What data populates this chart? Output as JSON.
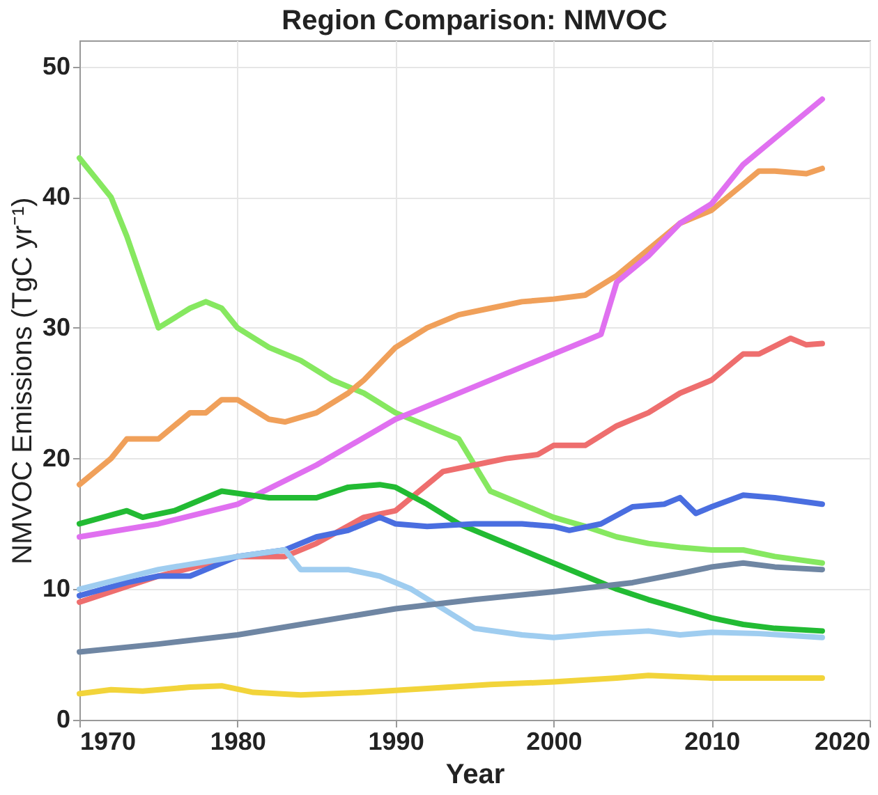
{
  "chart_data": {
    "type": "line",
    "title": "Region Comparison: NMVOC",
    "xlabel": "Year",
    "ylabel": "NMVOC Emissions (TgC yr⁻¹)",
    "xlim": [
      1970,
      2020
    ],
    "xticks": [
      1970,
      1980,
      1990,
      2000,
      2010,
      2020
    ],
    "ylim": [
      0,
      52
    ],
    "yticks": [
      0,
      10,
      20,
      30,
      40,
      50
    ],
    "grid": true,
    "legend": false,
    "series": [
      {
        "color": "#86e860",
        "x": [
          1970,
          1972,
          1973,
          1975,
          1977,
          1978,
          1979,
          1980,
          1982,
          1984,
          1986,
          1988,
          1990,
          1992,
          1994,
          1995,
          1996,
          1998,
          2000,
          2002,
          2004,
          2006,
          2008,
          2010,
          2012,
          2014,
          2017
        ],
        "values": [
          43,
          40,
          37,
          30,
          31.5,
          32,
          31.5,
          30,
          28.5,
          27.5,
          26,
          25,
          23.5,
          22.5,
          21.5,
          19.5,
          17.5,
          16.5,
          15.5,
          14.8,
          14,
          13.5,
          13.2,
          13,
          13,
          12.5,
          12
        ]
      },
      {
        "color": "#f0a05a",
        "x": [
          1970,
          1972,
          1973,
          1975,
          1977,
          1978,
          1979,
          1980,
          1982,
          1983,
          1985,
          1987,
          1988,
          1990,
          1992,
          1994,
          1996,
          1998,
          2000,
          2002,
          2004,
          2006,
          2008,
          2009,
          2010,
          2012,
          2013,
          2014,
          2016,
          2017
        ],
        "values": [
          18,
          20,
          21.5,
          21.5,
          23.5,
          23.5,
          24.5,
          24.5,
          23,
          22.8,
          23.5,
          25,
          26,
          28.5,
          30,
          31,
          31.5,
          32,
          32.2,
          32.5,
          34,
          36,
          38,
          38.5,
          39,
          41,
          42,
          42,
          41.8,
          42.2
        ]
      },
      {
        "color": "#e070f0",
        "x": [
          1970,
          1975,
          1980,
          1985,
          1990,
          1995,
          2000,
          2002,
          2003,
          2004,
          2006,
          2008,
          2010,
          2012,
          2014,
          2017
        ],
        "values": [
          14,
          15,
          16.5,
          19.5,
          23,
          25.5,
          28,
          29,
          29.5,
          33.5,
          35.5,
          38,
          39.5,
          42.5,
          44.5,
          47.5
        ]
      },
      {
        "color": "#ee6e6e",
        "x": [
          1970,
          1975,
          1980,
          1983,
          1985,
          1988,
          1990,
          1992,
          1993,
          1995,
          1997,
          1999,
          2000,
          2002,
          2004,
          2006,
          2008,
          2010,
          2012,
          2013,
          2015,
          2016,
          2017
        ],
        "values": [
          9,
          11,
          12.5,
          12.5,
          13.5,
          15.5,
          16,
          18,
          19,
          19.5,
          20,
          20.3,
          21,
          21,
          22.5,
          23.5,
          25,
          26,
          28,
          28,
          29.2,
          28.7,
          28.8
        ]
      },
      {
        "color": "#22bb33",
        "x": [
          1970,
          1973,
          1974,
          1976,
          1979,
          1982,
          1985,
          1987,
          1989,
          1990,
          1992,
          1994,
          1996,
          1998,
          2000,
          2002,
          2004,
          2006,
          2008,
          2010,
          2012,
          2014,
          2017
        ],
        "values": [
          15,
          16,
          15.5,
          16,
          17.5,
          17,
          17,
          17.8,
          18,
          17.8,
          16.5,
          15,
          14,
          13,
          12,
          11,
          10,
          9.2,
          8.5,
          7.8,
          7.3,
          7,
          6.8
        ]
      },
      {
        "color": "#4a6ee0",
        "x": [
          1970,
          1973,
          1975,
          1977,
          1980,
          1983,
          1985,
          1987,
          1989,
          1990,
          1992,
          1995,
          1998,
          2000,
          2001,
          2003,
          2005,
          2007,
          2008,
          2009,
          2010,
          2012,
          2014,
          2017
        ],
        "values": [
          9.5,
          10.5,
          11,
          11,
          12.5,
          13,
          14,
          14.5,
          15.5,
          15,
          14.8,
          15,
          15,
          14.8,
          14.5,
          15,
          16.3,
          16.5,
          17,
          15.8,
          16.3,
          17.2,
          17,
          16.5
        ]
      },
      {
        "color": "#9fcdf0",
        "x": [
          1970,
          1975,
          1980,
          1983,
          1984,
          1987,
          1989,
          1991,
          1993,
          1995,
          1998,
          2000,
          2003,
          2006,
          2008,
          2010,
          2013,
          2017
        ],
        "values": [
          10,
          11.5,
          12.5,
          13,
          11.5,
          11.5,
          11,
          10,
          8.5,
          7,
          6.5,
          6.3,
          6.6,
          6.8,
          6.5,
          6.7,
          6.6,
          6.3
        ]
      },
      {
        "color": "#6f86a3",
        "x": [
          1970,
          1975,
          1980,
          1985,
          1990,
          1995,
          2000,
          2005,
          2008,
          2010,
          2012,
          2014,
          2017
        ],
        "values": [
          5.2,
          5.8,
          6.5,
          7.5,
          8.5,
          9.2,
          9.8,
          10.5,
          11.2,
          11.7,
          12,
          11.7,
          11.5
        ]
      },
      {
        "color": "#f2d43a",
        "x": [
          1970,
          1972,
          1974,
          1977,
          1979,
          1981,
          1984,
          1988,
          1992,
          1996,
          2000,
          2004,
          2006,
          2010,
          2014,
          2017
        ],
        "values": [
          2,
          2.3,
          2.2,
          2.5,
          2.6,
          2.1,
          1.9,
          2.1,
          2.4,
          2.7,
          2.9,
          3.2,
          3.4,
          3.2,
          3.2,
          3.2
        ]
      }
    ]
  }
}
